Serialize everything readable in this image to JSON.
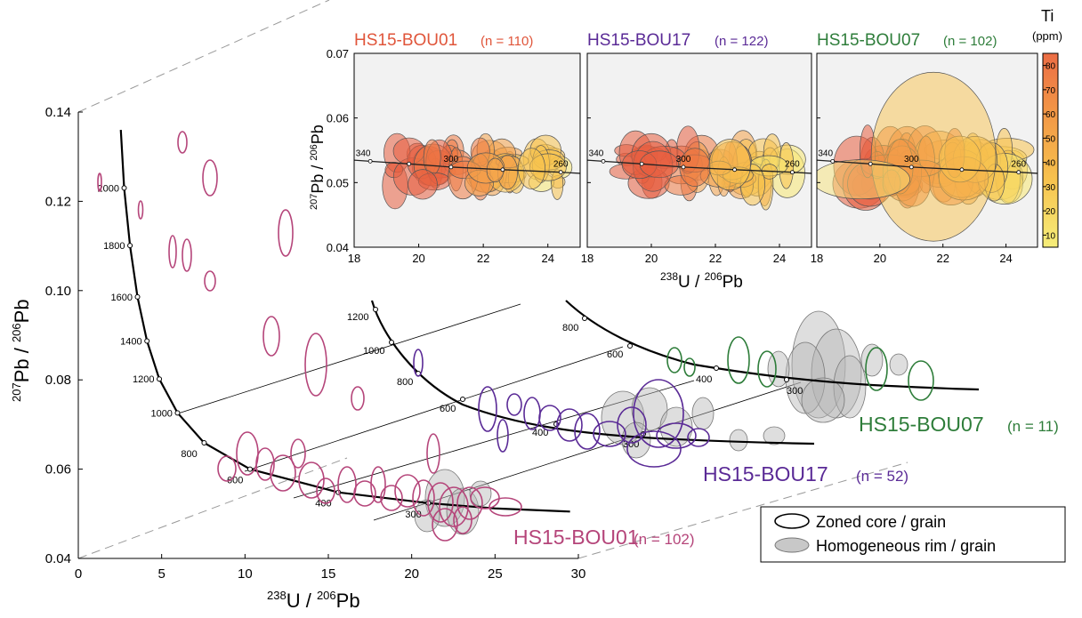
{
  "chart_data": [
    {
      "type": "scatter",
      "xlabel_main": "U",
      "xlabel_sup1": "238",
      "xlabel_sup2": "206",
      "xlabel_tail": "Pb",
      "xlabel_slash": " / ",
      "ylabel_sup1": "207",
      "ylabel_main": "Pb / ",
      "ylabel_sup2": "206",
      "ylabel_tail": "Pb",
      "xlim": [
        0,
        30
      ],
      "ylim": [
        0.04,
        0.14
      ],
      "xticks": [
        "0",
        "5",
        "10",
        "15",
        "20",
        "25",
        "30"
      ],
      "yticks": [
        "0.04",
        "0.06",
        "0.08",
        "0.10",
        "0.12",
        "0.14"
      ],
      "concordia_ages": [
        "2000",
        "1800",
        "1600",
        "1400",
        "1200",
        "1000",
        "800",
        "600",
        "400",
        "300"
      ],
      "concordia_points": [
        {
          "age": 2000,
          "x": 2.75,
          "y": 0.123
        },
        {
          "age": 1800,
          "x": 3.1,
          "y": 0.1101
        },
        {
          "age": 1600,
          "x": 3.55,
          "y": 0.0986
        },
        {
          "age": 1400,
          "x": 4.12,
          "y": 0.0887
        },
        {
          "age": 1200,
          "x": 4.86,
          "y": 0.0802
        },
        {
          "age": 1000,
          "x": 5.95,
          "y": 0.0726
        },
        {
          "age": 800,
          "x": 7.55,
          "y": 0.0659
        },
        {
          "age": 600,
          "x": 10.3,
          "y": 0.06
        },
        {
          "age": 400,
          "x": 15.6,
          "y": 0.0548
        },
        {
          "age": 300,
          "x": 21.0,
          "y": 0.0524
        }
      ],
      "series": [
        {
          "name": "HS15-BOU01",
          "count": "(n = 102)",
          "color": "#b5457a",
          "rim_color": "#9a9a9a"
        },
        {
          "name": "HS15-BOU17",
          "count": "(n = 52)",
          "color": "#5a2a96",
          "rim_color": "#9a9a9a"
        },
        {
          "name": "HS15-BOU07",
          "count": "(n = 11)",
          "color": "#2e7d3a",
          "rim_color": "#9a9a9a"
        }
      ],
      "legend": {
        "placement": "bottom-right",
        "items": [
          {
            "label": "Zoned core / grain",
            "style": "open-ellipse"
          },
          {
            "label": "Homogeneous rim / grain",
            "style": "grey-filled-ellipse"
          }
        ]
      }
    },
    {
      "type": "scatter",
      "panel_titles": [
        {
          "name": "HS15-BOU01",
          "count": "(n = 110)",
          "color": "#e0553a"
        },
        {
          "name": "HS15-BOU17",
          "count": "(n = 122)",
          "color": "#5a2a96"
        },
        {
          "name": "HS15-BOU07",
          "count": "(n = 102)",
          "color": "#2e7d3a"
        }
      ],
      "xlim": [
        18,
        25
      ],
      "ylim": [
        0.04,
        0.07
      ],
      "xticks": [
        "18",
        "20",
        "22",
        "24"
      ],
      "yticks": [
        "0.04",
        "0.05",
        "0.06",
        "0.07"
      ],
      "xlabel_sup1": "238",
      "xlabel_main": "U / ",
      "xlabel_sup2": "206",
      "xlabel_tail": "Pb",
      "ylabel_sup1": "207",
      "ylabel_main": "Pb / ",
      "ylabel_sup2": "206",
      "ylabel_tail": "Pb",
      "concordia_ages": [
        "340",
        "300",
        "260"
      ],
      "concordia_points": [
        {
          "age": 340,
          "x": 18.5,
          "y": 0.0533
        },
        {
          "age": 320,
          "x": 19.7,
          "y": 0.0529
        },
        {
          "age": 300,
          "x": 21.0,
          "y": 0.0524
        },
        {
          "age": 280,
          "x": 22.6,
          "y": 0.052
        },
        {
          "age": 260,
          "x": 24.4,
          "y": 0.0516
        }
      ],
      "colorbar": {
        "title": "Ti",
        "unit": "(ppm)",
        "ticks": [
          "80",
          "70",
          "60",
          "50",
          "40",
          "30",
          "20",
          "10"
        ],
        "range": [
          5,
          85
        ],
        "colors": [
          "#f6ee7a",
          "#f7c24e",
          "#f29646",
          "#ec6d45"
        ]
      }
    }
  ]
}
